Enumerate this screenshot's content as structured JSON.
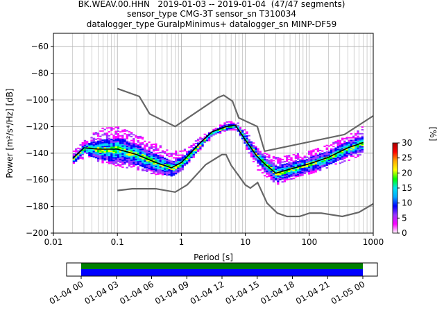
{
  "title_lines": [
    "BK.WEAV.00.HHN   2019-01-03 -- 2019-01-04  (47/47 segments)",
    "sensor_type CMG-3T sensor_sn T310034",
    "datalogger_type GuralpMinimus+ datalogger_sn MINP-DF59"
  ],
  "chart_data": {
    "type": "heatmap",
    "subtype": "probabilistic-power-spectral-density",
    "xlabel": "Period [s]",
    "ylabel": "Power [m²/s⁴/Hz] [dB]",
    "xscale": "log",
    "xlim": [
      0.01,
      1000
    ],
    "ylim": [
      -200,
      -50
    ],
    "x_ticks": [
      0.01,
      0.1,
      1,
      10,
      100,
      1000
    ],
    "x_tick_labels": [
      "0.01",
      "0.1",
      "1",
      "10",
      "100",
      "1000"
    ],
    "y_ticks": [
      -60,
      -80,
      -100,
      -120,
      -140,
      -160,
      -180,
      -200
    ],
    "y_tick_labels": [
      "−60",
      "−80",
      "−100",
      "−120",
      "−140",
      "−160",
      "−180",
      "−200"
    ],
    "grid": true,
    "colorbar": {
      "label": "[%]",
      "range": [
        0,
        30
      ],
      "ticks": [
        0,
        5,
        10,
        15,
        20,
        25,
        30
      ],
      "colormap": [
        "#ffffff",
        "#ff00ff",
        "#9933ff",
        "#0000ff",
        "#00aaff",
        "#00e5ee",
        "#00ff00",
        "#ffff00",
        "#ffaa00",
        "#ff0000",
        "#aa0000"
      ]
    },
    "mode_line": {
      "name": "mode",
      "color": "#000000",
      "x": [
        0.02,
        0.03,
        0.05,
        0.1,
        0.2,
        0.4,
        0.7,
        1,
        2,
        3,
        5,
        7,
        10,
        15,
        20,
        30,
        50,
        100,
        200,
        400,
        700
      ],
      "y": [
        -144,
        -136,
        -137,
        -137,
        -141,
        -147,
        -151,
        -147,
        -132,
        -124,
        -120,
        -119,
        -130,
        -142,
        -148,
        -155,
        -152,
        -148,
        -143,
        -136,
        -132
      ]
    },
    "noise_models": [
      {
        "name": "NHNM",
        "color": "#666666",
        "x": [
          0.1,
          0.22,
          0.32,
          0.8,
          3.8,
          4.6,
          6.3,
          7.9,
          15.4,
          20,
          354.8,
          1000
        ],
        "y": [
          -91.5,
          -97.4,
          -110.5,
          -120,
          -98,
          -96.5,
          -101,
          -113.5,
          -120,
          -138.5,
          -126,
          -112
        ]
      },
      {
        "name": "NLNM",
        "color": "#666666",
        "x": [
          0.1,
          0.17,
          0.4,
          0.8,
          1.24,
          2.4,
          4.3,
          5,
          6,
          10,
          12,
          15.6,
          21.9,
          31.6,
          45,
          70,
          101,
          154,
          328,
          600,
          1000
        ],
        "y": [
          -168,
          -166.7,
          -166.7,
          -169.2,
          -163.7,
          -148.6,
          -141.1,
          -141.1,
          -149,
          -163.8,
          -166.2,
          -162.1,
          -177.5,
          -185,
          -187.5,
          -187.5,
          -185,
          -185,
          -187.5,
          -184.4,
          -178
        ]
      }
    ],
    "density_band": {
      "x": [
        0.02,
        0.03,
        0.05,
        0.1,
        0.2,
        0.4,
        0.7,
        1,
        2,
        3,
        5,
        7,
        10,
        15,
        20,
        30,
        50,
        100,
        200,
        400,
        700
      ],
      "upper": [
        -138,
        -130,
        -121,
        -120,
        -126,
        -133,
        -138,
        -138,
        -127,
        -121,
        -116,
        -116,
        -122,
        -136,
        -140,
        -143,
        -141,
        -138,
        -133,
        -126,
        -119
      ],
      "lower": [
        -147,
        -143,
        -146,
        -150,
        -152,
        -156,
        -157,
        -152,
        -136,
        -127,
        -123,
        -122,
        -136,
        -152,
        -158,
        -163,
        -159,
        -155,
        -150,
        -145,
        -140
      ]
    },
    "timeline": {
      "tick_labels": [
        "01-04 00",
        "01-04 03",
        "01-04 06",
        "01-04 09",
        "01-04 12",
        "01-04 15",
        "01-04 18",
        "01-04 21",
        "01-05 00"
      ],
      "coverage_color": "#008000",
      "data_color": "#0000ff"
    }
  }
}
